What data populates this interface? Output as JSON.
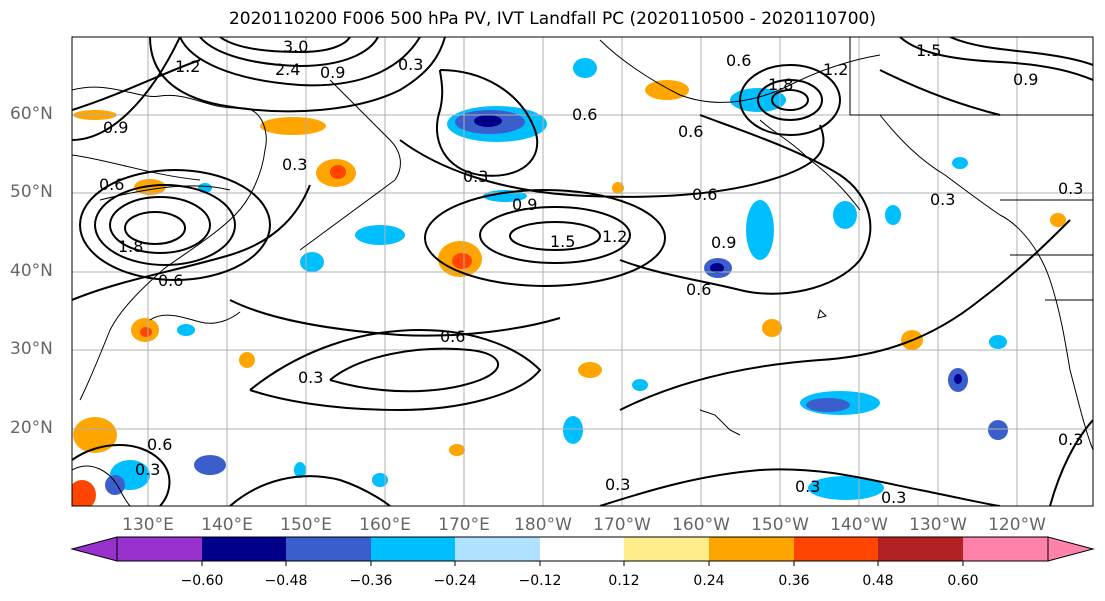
{
  "title": "2020110200 F006 500 hPa PV, IVT Landfall PC (2020110500 - 2020110700)",
  "map": {
    "lat_labels": [
      "60°N",
      "50°N",
      "40°N",
      "30°N",
      "20°N"
    ],
    "lon_labels": [
      "130°E",
      "140°E",
      "150°E",
      "160°E",
      "170°E",
      "180°W",
      "170°W",
      "160°W",
      "150°W",
      "140°W",
      "130°W",
      "120°W"
    ],
    "contour_labels": [
      "3.0",
      "2.4",
      "1.2",
      "1.8",
      "0.9",
      "0.6",
      "0.3",
      "0.9",
      "0.6",
      "0.3",
      "0.3",
      "0.6",
      "0.9",
      "1.5",
      "1.2",
      "0.6",
      "0.9",
      "0.6",
      "0.6",
      "1.2",
      "1.8",
      "1.5",
      "0.6",
      "0.9",
      "0.3",
      "0.3",
      "0.6",
      "0.3",
      "0.6",
      "0.3",
      "0.3",
      "0.3",
      "0.3",
      "0.3"
    ]
  },
  "colorbar": {
    "ticks": [
      "−0.60",
      "−0.48",
      "−0.36",
      "−0.24",
      "−0.12",
      "0.12",
      "0.24",
      "0.36",
      "0.48",
      "0.60"
    ],
    "colors": [
      "#9932cc",
      "#00008b",
      "#3a5fcd",
      "#00bfff",
      "#b0e2ff",
      "#ffffff",
      "#ffec8b",
      "#ffa500",
      "#ff4500",
      "#b22222",
      "#ff82ab"
    ]
  }
}
